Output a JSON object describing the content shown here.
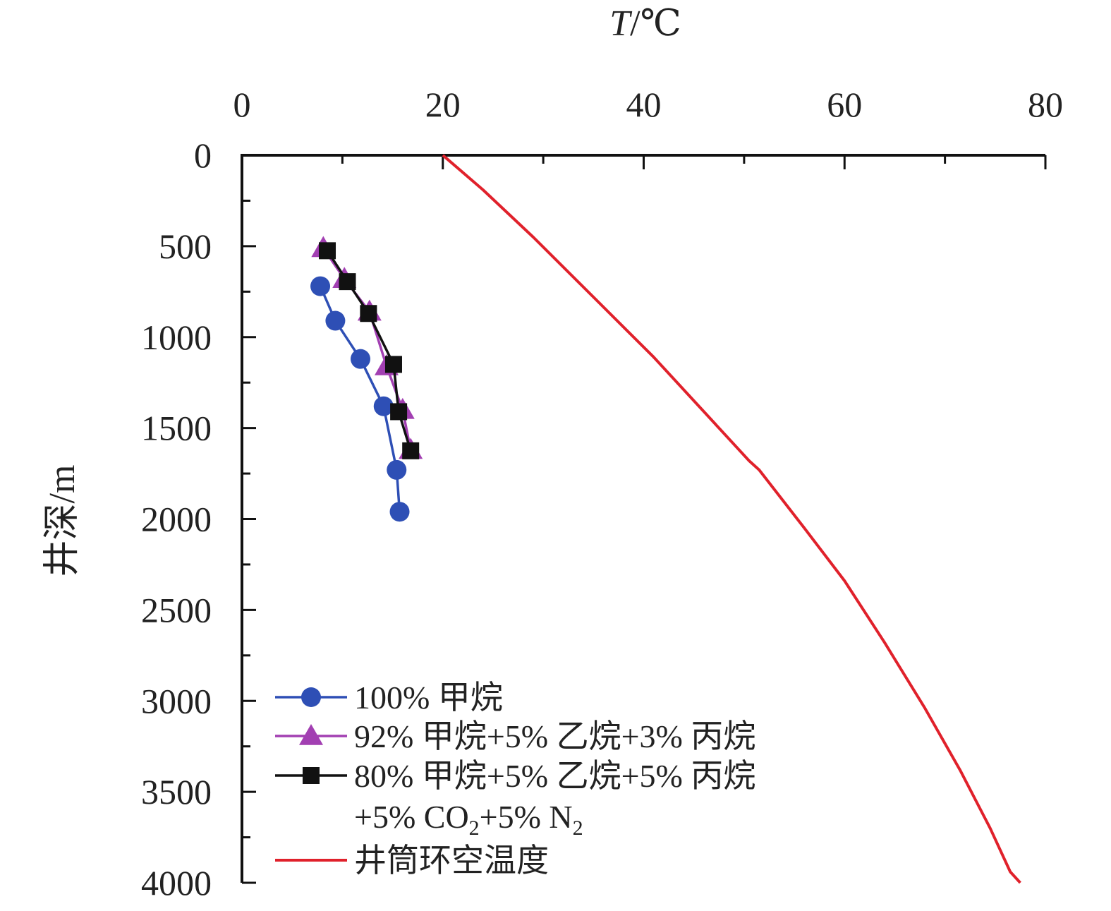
{
  "chart_data": {
    "type": "line",
    "xlabel": "T/℃",
    "ylabel": "井深/m",
    "xlim": [
      0,
      80
    ],
    "ylim": [
      0,
      4000
    ],
    "x_axis_position": "top",
    "y_axis_inverted": true,
    "x_ticks": [
      0,
      20,
      40,
      60,
      80
    ],
    "y_ticks": [
      0,
      500,
      1000,
      1500,
      2000,
      2500,
      3000,
      3500,
      4000
    ],
    "grid": false,
    "legend_position": "bottom-left",
    "series": [
      {
        "name": "100% 甲烷",
        "color": "#2e4fb5",
        "marker": "circle",
        "points": [
          [
            7.8,
            720
          ],
          [
            9.3,
            910
          ],
          [
            11.8,
            1120
          ],
          [
            14.1,
            1380
          ],
          [
            15.4,
            1730
          ],
          [
            15.7,
            1960
          ]
        ]
      },
      {
        "name": "92% 甲烷+5% 乙烷+3% 丙烷",
        "color": "#a23fb2",
        "marker": "triangle",
        "points": [
          [
            8.1,
            510
          ],
          [
            10.2,
            680
          ],
          [
            12.7,
            860
          ],
          [
            14.4,
            1160
          ],
          [
            16.0,
            1400
          ],
          [
            16.8,
            1620
          ]
        ]
      },
      {
        "name": "80% 甲烷+5% 乙烷+5% 丙烷",
        "name_line2_parts": [
          "+5% CO",
          "2",
          "+5% N",
          "2"
        ],
        "color": "#111111",
        "marker": "square",
        "points": [
          [
            8.5,
            525
          ],
          [
            10.5,
            695
          ],
          [
            12.6,
            870
          ],
          [
            15.1,
            1150
          ],
          [
            15.6,
            1410
          ],
          [
            16.8,
            1625
          ]
        ]
      },
      {
        "name": "井筒环空温度",
        "color": "#e0212b",
        "marker": "none",
        "points": [
          [
            20.0,
            0
          ],
          [
            24.0,
            190
          ],
          [
            29.0,
            450
          ],
          [
            35.0,
            780
          ],
          [
            41.0,
            1110
          ],
          [
            47.0,
            1470
          ],
          [
            50.5,
            1680
          ],
          [
            51.5,
            1730
          ],
          [
            56.0,
            2050
          ],
          [
            60.0,
            2340
          ],
          [
            64.0,
            2680
          ],
          [
            68.0,
            3040
          ],
          [
            71.5,
            3380
          ],
          [
            74.5,
            3700
          ],
          [
            76.5,
            3940
          ],
          [
            77.5,
            4000
          ]
        ]
      }
    ]
  }
}
